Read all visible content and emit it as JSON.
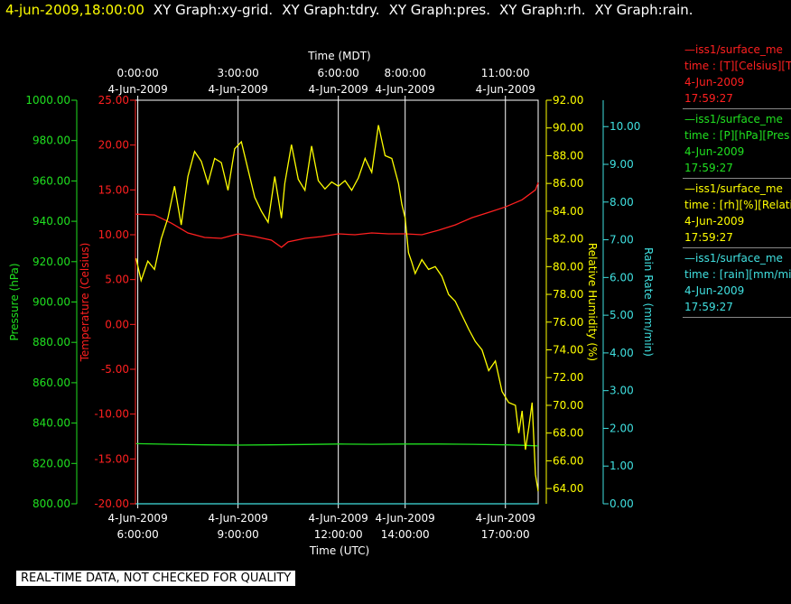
{
  "header": {
    "timestamp": "4-jun-2009,18:00:00",
    "items": [
      "XY Graph:xy-grid.",
      "XY Graph:tdry.",
      "XY Graph:pres.",
      "XY Graph:rh.",
      "XY Graph:rain."
    ]
  },
  "legend": [
    {
      "name": "—iss1/surface_me",
      "units": "time : [T][Celsius][T",
      "date": "4-Jun-2009",
      "time": "17:59:27",
      "color": "#ff2020",
      "date_color": "#ff2020"
    },
    {
      "name": "—iss1/surface_me",
      "units": "time : [P][hPa][Pres",
      "date": "4-Jun-2009",
      "time": "17:59:27",
      "color": "#20e020",
      "date_color": "#20e020"
    },
    {
      "name": "—iss1/surface_me",
      "units": "time : [rh][%][Relati",
      "date": "4-Jun-2009",
      "time": "17:59:27",
      "color": "#ffff00",
      "date_color": "#ffff00"
    },
    {
      "name": "—iss1/surface_me",
      "units": "time : [rain][mm/min",
      "date": "4-Jun-2009",
      "time": "17:59:27",
      "color": "#40e0e0",
      "date_color": "#40e0e0"
    }
  ],
  "footer_note": "REAL-TIME DATA, NOT CHECKED FOR QUALITY",
  "colors": {
    "temperature": "#ff2020",
    "pressure": "#20e020",
    "rh": "#ffff00",
    "rain": "#40e0e0",
    "grid": "#ffffff"
  },
  "chart_data": {
    "type": "line",
    "x_top_label": "Time (MDT)",
    "x_bottom_label": "Time (UTC)",
    "x_range_utc_hours": [
      5.93,
      17.98
    ],
    "bottom_ticks": [
      {
        "utc_hours": 6,
        "date": "4-Jun-2009",
        "time": "6:00:00"
      },
      {
        "utc_hours": 9,
        "date": "4-Jun-2009",
        "time": "9:00:00"
      },
      {
        "utc_hours": 12,
        "date": "4-Jun-2009",
        "time": "12:00:00"
      },
      {
        "utc_hours": 14,
        "date": "4-Jun-2009",
        "time": "14:00:00"
      },
      {
        "utc_hours": 17,
        "date": "4-Jun-2009",
        "time": "17:00:00"
      }
    ],
    "top_ticks": [
      {
        "utc_hours": 6,
        "time": "0:00:00",
        "date": "4-Jun-2009"
      },
      {
        "utc_hours": 9,
        "time": "3:00:00",
        "date": "4-Jun-2009"
      },
      {
        "utc_hours": 12,
        "time": "6:00:00",
        "date": "4-Jun-2009"
      },
      {
        "utc_hours": 14,
        "time": "8:00:00",
        "date": "4-Jun-2009"
      },
      {
        "utc_hours": 17,
        "time": "11:00:00",
        "date": "4-Jun-2009"
      }
    ],
    "grid": true,
    "axes": {
      "pressure": {
        "label": "Pressure (hPa)",
        "range": [
          800,
          1000
        ],
        "ticks": [
          "800.00",
          "820.00",
          "840.00",
          "860.00",
          "880.00",
          "900.00",
          "920.00",
          "940.00",
          "960.00",
          "980.00",
          "1000.00"
        ]
      },
      "temperature": {
        "label": "Temperature (Celsius)",
        "range": [
          -20,
          25
        ],
        "ticks": [
          "-20.00",
          "-15.00",
          "-10.00",
          "-5.00",
          "0.00",
          "5.00",
          "10.00",
          "15.00",
          "20.00",
          "25.00"
        ]
      },
      "rh": {
        "label": "Relative Humidity (%)",
        "range": [
          62.9,
          92
        ],
        "ticks": [
          "64.00",
          "66.00",
          "68.00",
          "70.00",
          "72.00",
          "74.00",
          "76.00",
          "78.00",
          "80.00",
          "82.00",
          "84.00",
          "86.00",
          "88.00",
          "90.00",
          "92.00"
        ]
      },
      "rain": {
        "label": "Rain Rate (mm/min)",
        "range": [
          0,
          10.7
        ],
        "ticks": [
          "0.00",
          "1.00",
          "2.00",
          "3.00",
          "4.00",
          "5.00",
          "6.00",
          "7.00",
          "8.00",
          "9.00",
          "10.00"
        ]
      }
    },
    "series": [
      {
        "name": "iss1/surface_me",
        "axis": "temperature",
        "x": [
          5.95,
          6.5,
          7.0,
          7.5,
          8.0,
          8.5,
          9.0,
          9.5,
          10.0,
          10.3,
          10.5,
          11.0,
          11.5,
          12.0,
          12.5,
          13.0,
          13.5,
          14.0,
          14.5,
          15.0,
          15.5,
          16.0,
          16.5,
          17.0,
          17.5,
          17.9,
          17.98
        ],
        "y": [
          12.3,
          12.2,
          11.3,
          10.2,
          9.7,
          9.6,
          10.1,
          9.8,
          9.4,
          8.6,
          9.2,
          9.6,
          9.8,
          10.1,
          10.0,
          10.2,
          10.1,
          10.1,
          10.0,
          10.5,
          11.1,
          11.9,
          12.5,
          13.1,
          13.9,
          15.0,
          15.8
        ]
      },
      {
        "name": "iss1/surface_me",
        "axis": "pressure",
        "x": [
          5.95,
          7.0,
          8.0,
          9.0,
          10.0,
          11.0,
          12.0,
          13.0,
          14.0,
          15.0,
          16.0,
          17.0,
          17.5,
          17.98
        ],
        "y": [
          829.8,
          829.5,
          829.2,
          829.1,
          829.2,
          829.4,
          829.6,
          829.5,
          829.6,
          829.6,
          829.5,
          829.2,
          829.0,
          828.7
        ]
      },
      {
        "name": "iss1/surface_me",
        "axis": "rh",
        "x": [
          5.95,
          6.1,
          6.3,
          6.5,
          6.7,
          6.9,
          7.1,
          7.3,
          7.5,
          7.7,
          7.9,
          8.1,
          8.3,
          8.5,
          8.7,
          8.9,
          9.1,
          9.3,
          9.5,
          9.7,
          9.9,
          10.1,
          10.2,
          10.3,
          10.4,
          10.6,
          10.8,
          11.0,
          11.2,
          11.4,
          11.6,
          11.8,
          12.0,
          12.2,
          12.4,
          12.6,
          12.8,
          13.0,
          13.2,
          13.4,
          13.6,
          13.8,
          13.9,
          14.0,
          14.1,
          14.2,
          14.3,
          14.5,
          14.7,
          14.9,
          15.1,
          15.3,
          15.5,
          15.7,
          15.9,
          16.1,
          16.3,
          16.5,
          16.7,
          16.9,
          17.1,
          17.3,
          17.4,
          17.5,
          17.6,
          17.7,
          17.8,
          17.9,
          17.98
        ],
        "y": [
          80.6,
          79.0,
          80.4,
          79.8,
          82.0,
          83.5,
          85.8,
          83.0,
          86.5,
          88.3,
          87.6,
          86.0,
          87.8,
          87.5,
          85.5,
          88.5,
          89.0,
          87.0,
          85.0,
          84.0,
          83.2,
          86.5,
          85.0,
          83.5,
          86.0,
          88.8,
          86.3,
          85.5,
          88.7,
          86.2,
          85.6,
          86.1,
          85.8,
          86.2,
          85.5,
          86.4,
          87.8,
          86.8,
          90.2,
          88.0,
          87.8,
          86.0,
          84.5,
          83.5,
          81.0,
          80.3,
          79.5,
          80.5,
          79.8,
          80.0,
          79.3,
          78.0,
          77.5,
          76.5,
          75.5,
          74.6,
          74.0,
          72.5,
          73.2,
          71.0,
          70.2,
          70.0,
          68.0,
          69.6,
          66.8,
          68.4,
          70.2,
          65.0,
          63.8
        ]
      },
      {
        "name": "iss1/surface_me",
        "axis": "rain",
        "x": [
          5.95,
          17.98
        ],
        "y": [
          0.0,
          0.0
        ]
      }
    ]
  }
}
